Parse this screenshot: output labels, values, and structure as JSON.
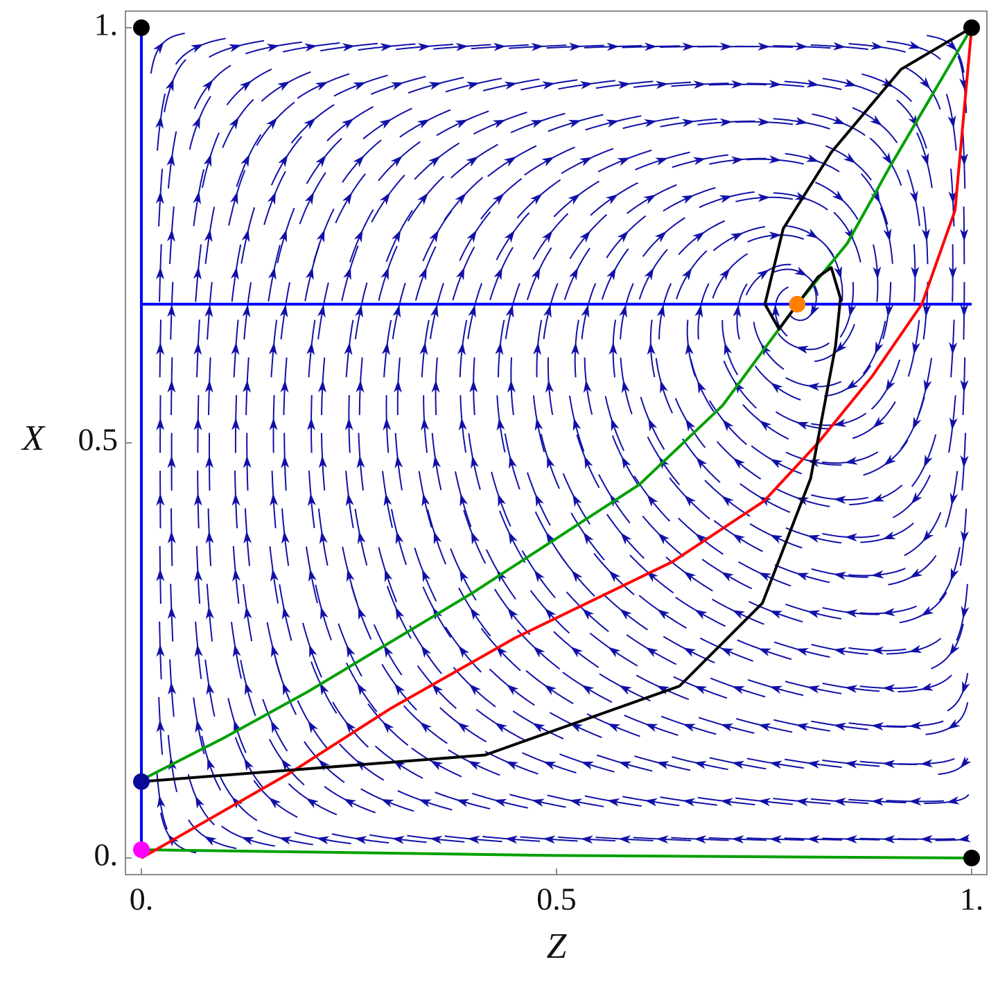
{
  "chart_data": {
    "type": "line",
    "xlabel": "Z",
    "ylabel": "X",
    "xlim": [
      0,
      1
    ],
    "ylim": [
      0,
      1
    ],
    "xticks": [
      {
        "value": 0,
        "label": "0."
      },
      0.5,
      {
        "value": 1,
        "label": "1."
      }
    ],
    "yticks": [
      {
        "value": 0,
        "label": "0."
      },
      0.5,
      {
        "value": 1,
        "label": "1."
      }
    ],
    "series": [
      {
        "color": "#0000ff",
        "mode": "line",
        "x": [
          0,
          0
        ],
        "values": [
          0,
          1
        ]
      },
      {
        "color": "#0000ff",
        "mode": "line",
        "x": [
          0,
          1
        ],
        "values": [
          0.667,
          0.667
        ]
      },
      {
        "color": "#00a000",
        "mode": "line",
        "x": [
          0,
          0.1,
          0.2,
          0.3,
          0.4,
          0.5,
          0.6,
          0.7,
          0.79,
          0.85,
          0.9,
          0.95,
          1
        ],
        "values": [
          0.094,
          0.145,
          0.2,
          0.26,
          0.32,
          0.385,
          0.45,
          0.545,
          0.667,
          0.74,
          0.83,
          0.915,
          1
        ]
      },
      {
        "color": "#00a000",
        "mode": "line",
        "x": [
          0,
          0.5,
          1
        ],
        "values": [
          0.01,
          0.003,
          0
        ]
      },
      {
        "color": "#ff0000",
        "mode": "line",
        "x": [
          0,
          0.18,
          0.3,
          0.45,
          0.64,
          0.75,
          0.815,
          0.88,
          0.94,
          0.98,
          1
        ],
        "values": [
          0,
          0.103,
          0.18,
          0.265,
          0.357,
          0.43,
          0.5,
          0.58,
          0.667,
          0.78,
          1
        ]
      },
      {
        "color": "#000000",
        "mode": "line",
        "x": [
          0,
          0.414,
          0.648,
          0.748,
          0.806,
          0.836,
          0.842,
          0.831,
          0.815,
          0.79
        ],
        "values": [
          0.092,
          0.124,
          0.207,
          0.307,
          0.457,
          0.616,
          0.674,
          0.711,
          0.7,
          0.667
        ]
      },
      {
        "color": "#000000",
        "mode": "line",
        "x": [
          1,
          0.915,
          0.831,
          0.773,
          0.751,
          0.768,
          0.79
        ],
        "values": [
          1,
          0.95,
          0.85,
          0.758,
          0.667,
          0.637,
          0.667
        ]
      },
      {
        "color": "#000000",
        "mode": "markers",
        "x": [
          0,
          1,
          1
        ],
        "values": [
          1,
          1,
          0
        ]
      },
      {
        "color": "#0a0a9a",
        "mode": "markers",
        "x": [
          0
        ],
        "values": [
          0.092
        ]
      },
      {
        "color": "#ff00ff",
        "mode": "markers",
        "x": [
          0
        ],
        "values": [
          0.01
        ]
      },
      {
        "color": "#ff8000",
        "mode": "markers",
        "x": [
          0.79
        ],
        "values": [
          0.667
        ]
      }
    ]
  }
}
